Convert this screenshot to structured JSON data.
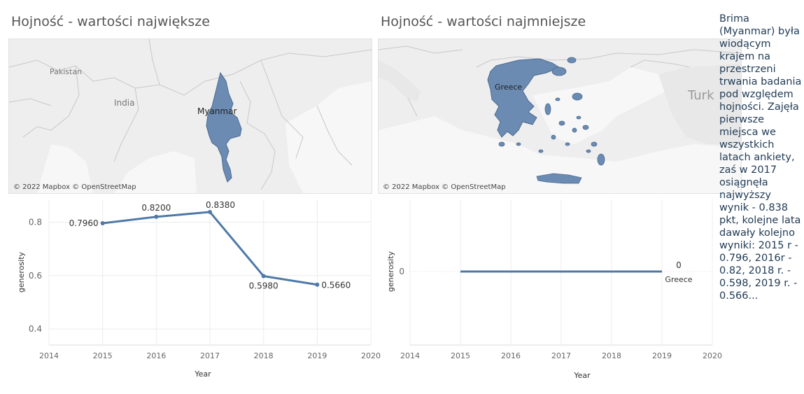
{
  "left": {
    "title": "Hojność - wartości największe",
    "map": {
      "attribution": "© 2022 Mapbox © OpenStreetMap",
      "labels": {
        "pakistan": "Pakistan",
        "india": "India",
        "country": "Myanmar"
      },
      "fill_color": "#6b8bb3"
    }
  },
  "right": {
    "title": "Hojność - wartości najmniejsze",
    "map": {
      "attribution": "© 2022 Mapbox © OpenStreetMap",
      "labels": {
        "country": "Greece",
        "edge": "Turk"
      },
      "fill_color": "#6b8bb3"
    }
  },
  "chart_data": [
    {
      "type": "line",
      "x": [
        2015,
        2016,
        2017,
        2018,
        2019
      ],
      "values": [
        0.796,
        0.82,
        0.838,
        0.598,
        0.566
      ],
      "data_labels": [
        "0.7960",
        "0.8200",
        "0.8380",
        "0.5980",
        "0.5660"
      ],
      "xlabel": "Year",
      "ylabel": "generosity",
      "xlim": [
        2014,
        2020
      ],
      "x_ticks": [
        "2014",
        "2015",
        "2016",
        "2017",
        "2018",
        "2019",
        "2020"
      ],
      "ylim": [
        0.34,
        0.885
      ],
      "y_ticks": [
        "0.4",
        "0.6",
        "0.8"
      ],
      "color": "#4e79a7",
      "grid": true
    },
    {
      "type": "line",
      "x": [
        2015,
        2016,
        2017,
        2018,
        2019
      ],
      "values": [
        0,
        0,
        0,
        0,
        0
      ],
      "data_labels": [
        "0"
      ],
      "end_label": "Greece",
      "xlabel": "Year",
      "ylabel": "generosity",
      "xlim": [
        2014,
        2020
      ],
      "x_ticks": [
        "2014",
        "2015",
        "2016",
        "2017",
        "2018",
        "2019",
        "2020"
      ],
      "y_ticks": [
        "0"
      ],
      "color": "#4e79a7",
      "grid": true
    }
  ],
  "side_text": "Brima (Myanmar) była wiodącym krajem na przestrzeni trwania badania pod względem hojności. Zajęła pierwsze miejsca we wszystkich latach ankiety, zaś w 2017 osiągnęła najwyższy wynik - 0.838 pkt, kolejne lata dawały kolejno wyniki: 2015 r - 0.796, 2016r - 0.82, 2018 r. - 0.598, 2019 r. - 0.566..."
}
